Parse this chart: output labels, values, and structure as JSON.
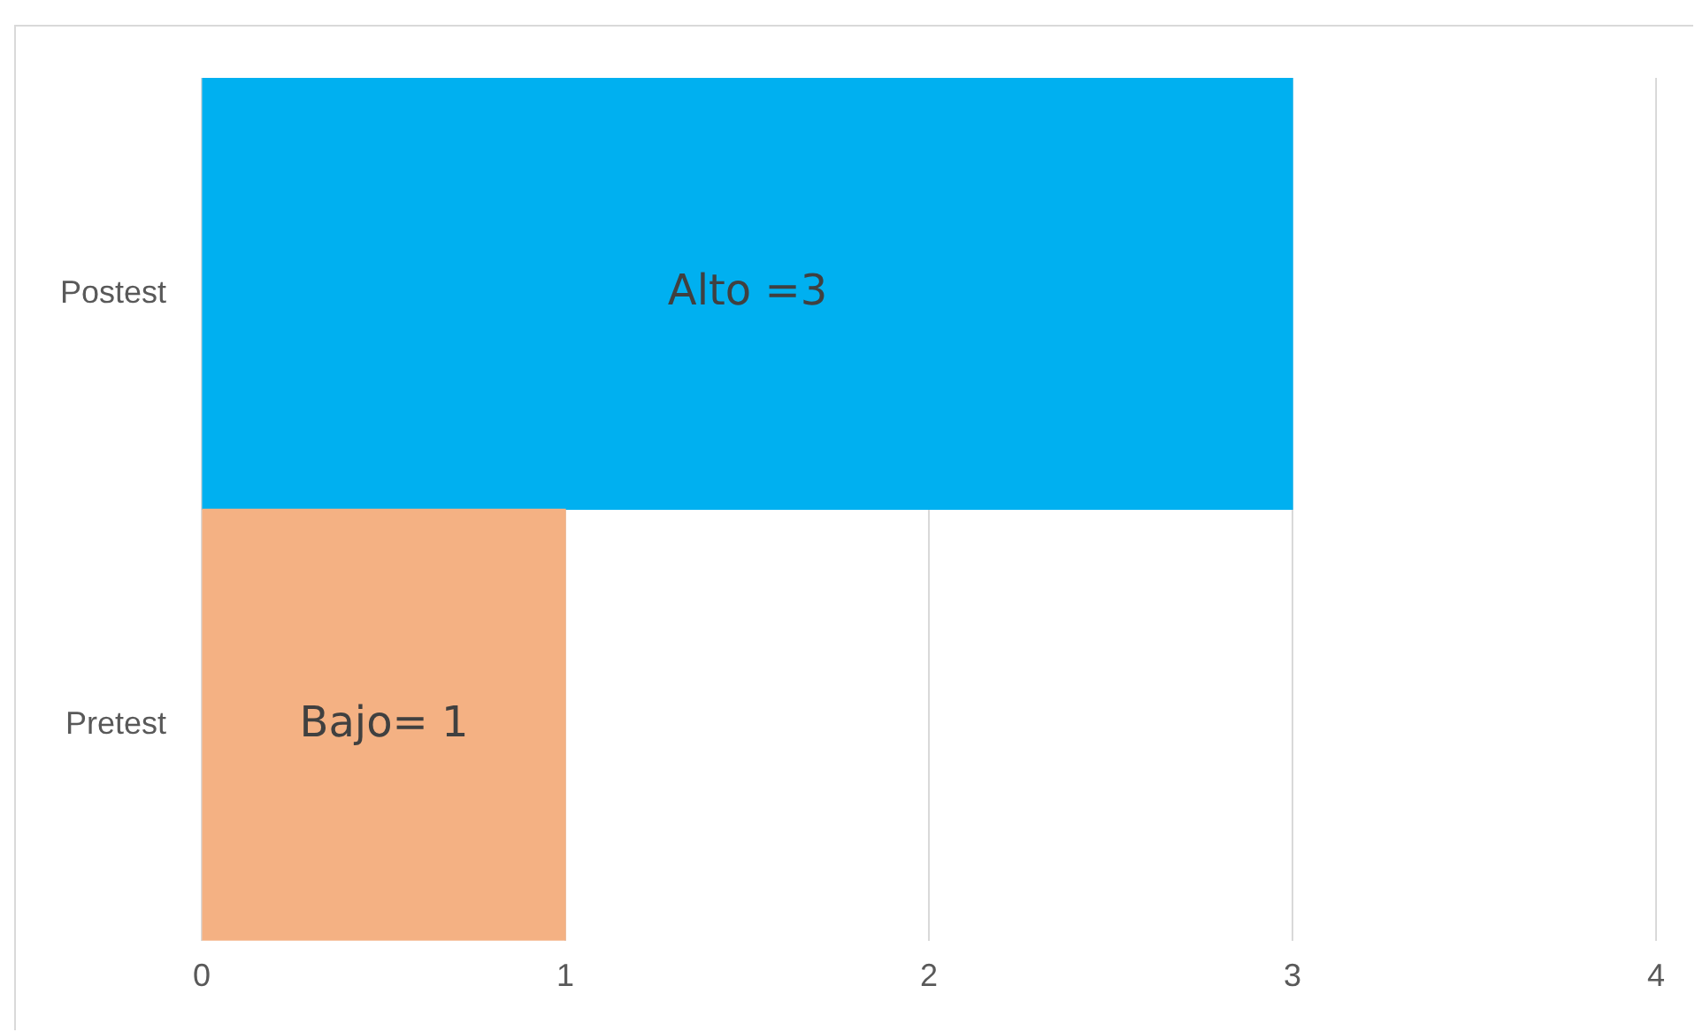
{
  "chart_data": {
    "type": "bar",
    "orientation": "horizontal",
    "categories": [
      "Postest",
      "Pretest"
    ],
    "values": [
      3,
      1
    ],
    "colors": [
      "#00b0f0",
      "#f4b183"
    ],
    "value_labels": [
      "Alto =3",
      "Bajo= 1"
    ],
    "xlim": [
      0,
      4
    ],
    "xticks": [
      0,
      1,
      2,
      3,
      4
    ],
    "grid": "x",
    "legend": false
  }
}
